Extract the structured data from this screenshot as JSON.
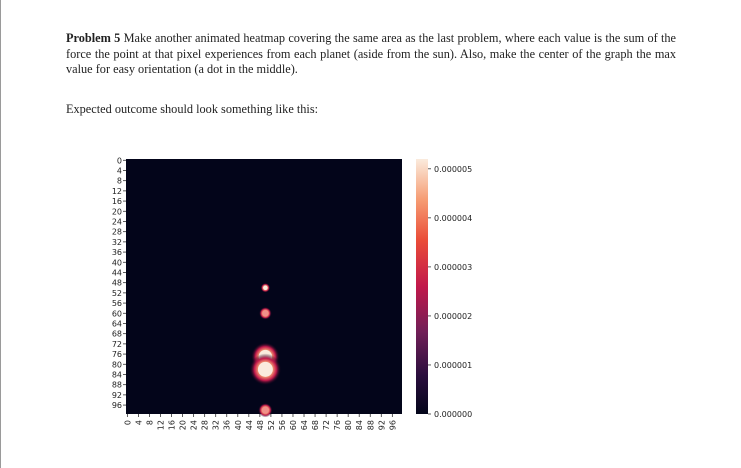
{
  "problem": {
    "label": "Problem 5",
    "text": "Make another animated heatmap covering the same area as the last problem, where each value is the sum of the force the point at that pixel experiences from each planet (aside from the sun). Also, make the center of the graph the max value for easy orientation (a dot in the middle).",
    "expected": "Expected outcome should look something like this:"
  },
  "chart_data": {
    "type": "heatmap",
    "title": "",
    "xlabel": "",
    "ylabel": "",
    "x_ticks": [
      "0",
      "4",
      "8",
      "12",
      "16",
      "20",
      "24",
      "28",
      "32",
      "36",
      "40",
      "44",
      "48",
      "52",
      "56",
      "60",
      "64",
      "68",
      "72",
      "76",
      "80",
      "84",
      "88",
      "92",
      "96"
    ],
    "y_ticks": [
      "0",
      "4",
      "8",
      "12",
      "16",
      "20",
      "24",
      "28",
      "32",
      "36",
      "40",
      "44",
      "48",
      "52",
      "56",
      "60",
      "64",
      "68",
      "72",
      "76",
      "80",
      "84",
      "88",
      "92",
      "96"
    ],
    "grid_size": 100,
    "colorbar": {
      "ticks": [
        "0.000005",
        "0.000004",
        "0.000003",
        "0.000002",
        "0.000001",
        "0.000000"
      ],
      "range": [
        0,
        5.2e-06
      ]
    },
    "hotspots": [
      {
        "row": 50,
        "col": 50,
        "value": 5.2e-06,
        "radius": 0.6
      },
      {
        "row": 60,
        "col": 50,
        "value": 2.8e-06,
        "radius": 0.8
      },
      {
        "row": 77,
        "col": 50,
        "value": 5.2e-06,
        "radius": 1.8
      },
      {
        "row": 82,
        "col": 50,
        "value": 5.2e-06,
        "radius": 2.0
      },
      {
        "row": 98,
        "col": 50,
        "value": 3.5e-06,
        "radius": 0.9
      }
    ]
  }
}
